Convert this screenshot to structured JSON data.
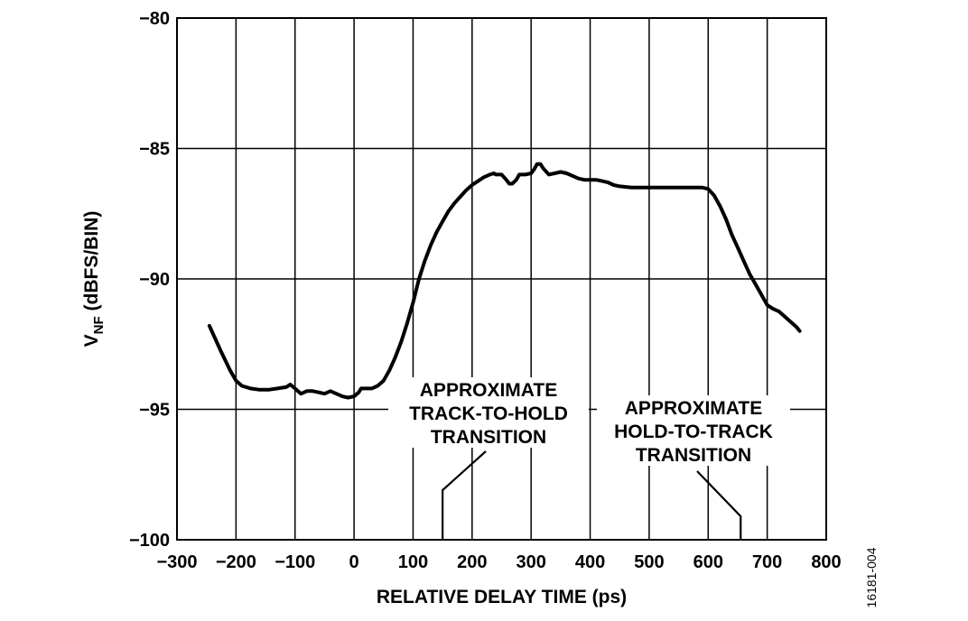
{
  "chart_data": {
    "type": "line",
    "xlabel": "RELATIVE DELAY TIME (ps)",
    "ylabel_main": "V",
    "ylabel_sub": "NF",
    "ylabel_rest": " (dBFS/BIN)",
    "xlim": [
      -300,
      800
    ],
    "ylim": [
      -100,
      -80
    ],
    "x_ticks": [
      -300,
      -200,
      -100,
      0,
      100,
      200,
      300,
      400,
      500,
      600,
      700,
      800
    ],
    "x_tick_labels": [
      "−300",
      "−200",
      "−100",
      "0",
      "100",
      "200",
      "300",
      "400",
      "500",
      "600",
      "700",
      "800"
    ],
    "y_ticks": [
      -80,
      -85,
      -90,
      -95,
      -100
    ],
    "y_tick_labels": [
      "−80",
      "−85",
      "−90",
      "−95",
      "−100"
    ],
    "grid": true,
    "series": [
      {
        "x": [
          -245,
          -225,
          -210,
          -200,
          -190,
          -175,
          -160,
          -145,
          -130,
          -115,
          -108,
          -100,
          -90,
          -80,
          -70,
          -60,
          -50,
          -40,
          -30,
          -20,
          -10,
          0,
          8,
          12,
          20,
          30,
          40,
          50,
          60,
          70,
          80,
          90,
          100,
          110,
          120,
          130,
          140,
          150,
          160,
          170,
          180,
          190,
          200,
          210,
          220,
          230,
          237,
          240,
          250,
          258,
          263,
          268,
          275,
          280,
          290,
          300,
          305,
          310,
          316,
          320,
          330,
          340,
          350,
          360,
          370,
          380,
          390,
          400,
          410,
          420,
          430,
          440,
          450,
          470,
          500,
          530,
          560,
          580,
          590,
          600,
          610,
          620,
          630,
          640,
          650,
          660,
          670,
          680,
          690,
          700,
          710,
          720,
          730,
          740,
          750,
          755
        ],
        "y": [
          -91.8,
          -92.8,
          -93.5,
          -93.9,
          -94.1,
          -94.2,
          -94.25,
          -94.25,
          -94.2,
          -94.15,
          -94.05,
          -94.2,
          -94.4,
          -94.3,
          -94.3,
          -94.35,
          -94.4,
          -94.3,
          -94.4,
          -94.5,
          -94.55,
          -94.5,
          -94.35,
          -94.2,
          -94.2,
          -94.2,
          -94.1,
          -93.9,
          -93.5,
          -93.0,
          -92.4,
          -91.7,
          -90.9,
          -90.0,
          -89.3,
          -88.7,
          -88.2,
          -87.8,
          -87.4,
          -87.1,
          -86.85,
          -86.6,
          -86.4,
          -86.25,
          -86.1,
          -86.0,
          -85.95,
          -86.0,
          -86.0,
          -86.2,
          -86.35,
          -86.35,
          -86.2,
          -86.0,
          -86.0,
          -85.95,
          -85.8,
          -85.6,
          -85.6,
          -85.75,
          -86.0,
          -85.95,
          -85.9,
          -85.95,
          -86.05,
          -86.15,
          -86.2,
          -86.2,
          -86.2,
          -86.25,
          -86.3,
          -86.4,
          -86.45,
          -86.5,
          -86.5,
          -86.5,
          -86.5,
          -86.5,
          -86.5,
          -86.55,
          -86.8,
          -87.2,
          -87.7,
          -88.3,
          -88.8,
          -89.3,
          -89.8,
          -90.2,
          -90.6,
          -91.0,
          -91.15,
          -91.25,
          -91.45,
          -91.65,
          -91.85,
          -92.0
        ]
      }
    ],
    "annotations": [
      {
        "lines": [
          "APPROXIMATE",
          "TRACK-TO-HOLD",
          "TRANSITION"
        ],
        "x": 150
      },
      {
        "lines": [
          "APPROXIMATE",
          "HOLD-TO-TRACK",
          "TRANSITION"
        ],
        "x": 655
      }
    ],
    "figure_id": "16181-004"
  }
}
